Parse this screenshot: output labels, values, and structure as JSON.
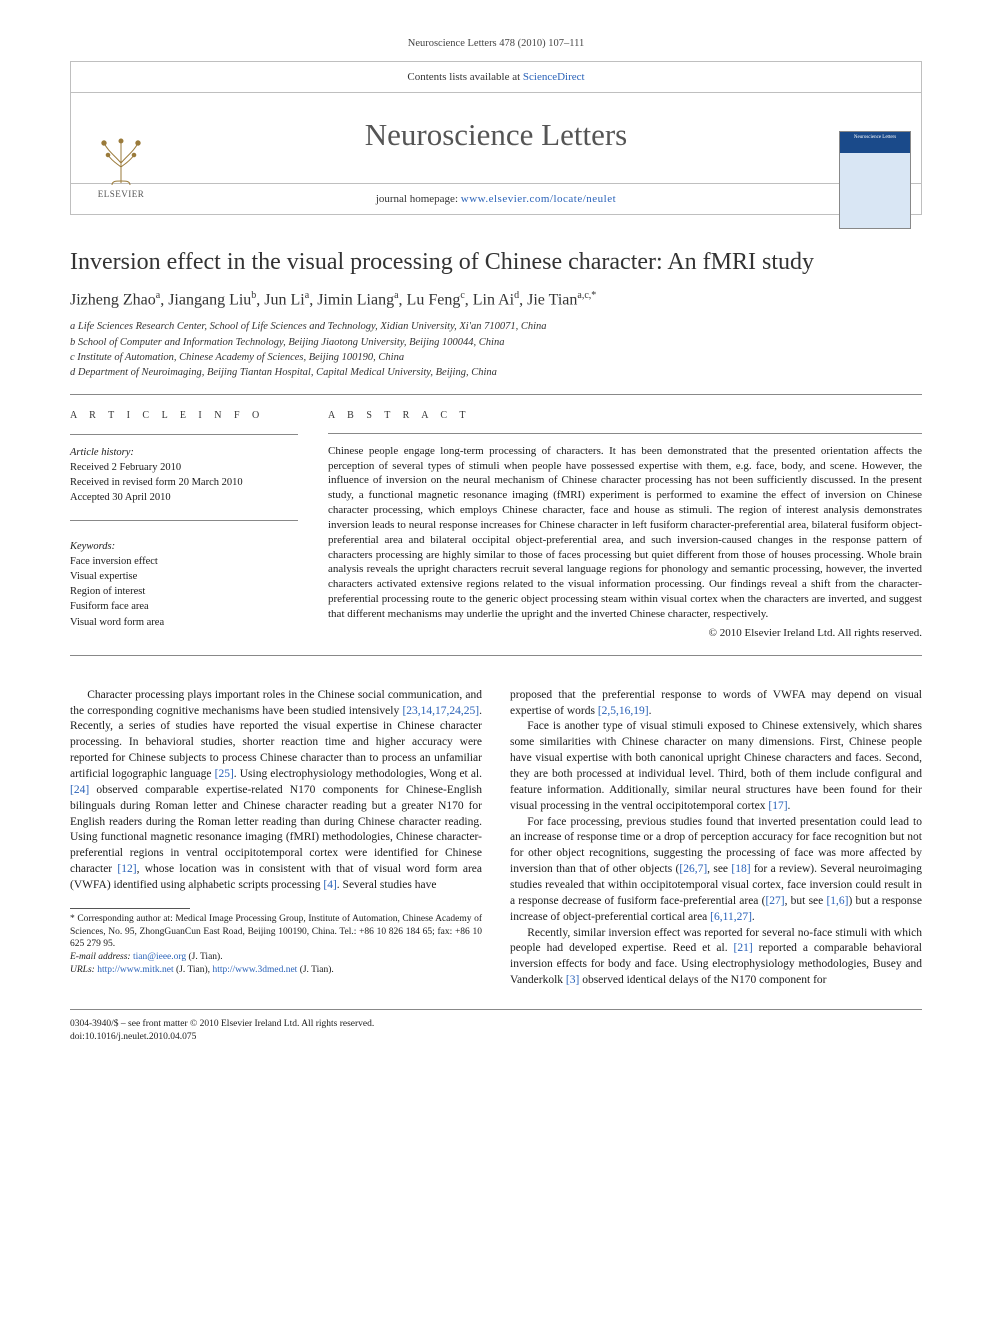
{
  "running_head": "Neuroscience Letters 478 (2010) 107–111",
  "header": {
    "contents_line_prefix": "Contents lists available at ",
    "contents_link": "ScienceDirect",
    "journal": "Neuroscience Letters",
    "homepage_prefix": "journal homepage: ",
    "homepage_url": "www.elsevier.com/locate/neulet",
    "publisher_wordmark": "ELSEVIER",
    "cover_title": "Neuroscience Letters"
  },
  "title": "Inversion effect in the visual processing of Chinese character: An fMRI study",
  "authors_html": "Jizheng Zhao<sup>a</sup>, Jiangang Liu<sup>b</sup>, Jun Li<sup>a</sup>, Jimin Liang<sup>a</sup>, Lu Feng<sup>c</sup>, Lin Ai<sup>d</sup>, Jie Tian<sup>a,c,*</sup>",
  "affiliations": [
    "a Life Sciences Research Center, School of Life Sciences and Technology, Xidian University, Xi'an 710071, China",
    "b School of Computer and Information Technology, Beijing Jiaotong University, Beijing 100044, China",
    "c Institute of Automation, Chinese Academy of Sciences, Beijing 100190, China",
    "d Department of Neuroimaging, Beijing Tiantan Hospital, Capital Medical University, Beijing, China"
  ],
  "article_info": {
    "heading": "A R T I C L E   I N F O",
    "history_head": "Article history:",
    "history": [
      "Received 2 February 2010",
      "Received in revised form 20 March 2010",
      "Accepted 30 April 2010"
    ],
    "keywords_head": "Keywords:",
    "keywords": [
      "Face inversion effect",
      "Visual expertise",
      "Region of interest",
      "Fusiform face area",
      "Visual word form area"
    ]
  },
  "abstract": {
    "heading": "A B S T R A C T",
    "text": "Chinese people engage long-term processing of characters. It has been demonstrated that the presented orientation affects the perception of several types of stimuli when people have possessed expertise with them, e.g. face, body, and scene. However, the influence of inversion on the neural mechanism of Chinese character processing has not been sufficiently discussed. In the present study, a functional magnetic resonance imaging (fMRI) experiment is performed to examine the effect of inversion on Chinese character processing, which employs Chinese character, face and house as stimuli. The region of interest analysis demonstrates inversion leads to neural response increases for Chinese character in left fusiform character-preferential area, bilateral fusiform object-preferential area and bilateral occipital object-preferential area, and such inversion-caused changes in the response pattern of characters processing are highly similar to those of faces processing but quiet different from those of houses processing. Whole brain analysis reveals the upright characters recruit several language regions for phonology and semantic processing, however, the inverted characters activated extensive regions related to the visual information processing. Our findings reveal a shift from the character-preferential processing route to the generic object processing steam within visual cortex when the characters are inverted, and suggest that different mechanisms may underlie the upright and the inverted Chinese character, respectively.",
    "copyright": "© 2010 Elsevier Ireland Ltd. All rights reserved."
  },
  "body": {
    "p1_a": "Character processing plays important roles in the Chinese social communication, and the corresponding cognitive mechanisms have been studied intensively ",
    "p1_ref1": "[23,14,17,24,25]",
    "p1_b": ". Recently, a series of studies have reported the visual expertise in Chinese character processing. In behavioral studies, shorter reaction time and higher accuracy were reported for Chinese subjects to process Chinese character than to process an unfamiliar artificial logographic language ",
    "p1_ref2": "[25]",
    "p1_c": ". Using electrophysiology methodologies, Wong et al. ",
    "p1_ref3": "[24]",
    "p1_d": " observed comparable expertise-related N170 components for Chinese-English bilinguals during Roman letter and Chinese character reading but a greater N170 for English readers during the Roman letter reading than during Chinese character reading. Using functional magnetic resonance imaging (fMRI) methodologies, Chinese character-preferential regions in ventral occipitotemporal cortex were identified for Chinese character ",
    "p1_ref4": "[12]",
    "p1_e": ", whose location was in consistent with that of visual word form area (VWFA) identified using alphabetic scripts processing ",
    "p1_ref5": "[4]",
    "p1_f": ". Several studies have",
    "p2_a": "proposed that the preferential response to words of VWFA may depend on visual expertise of words ",
    "p2_ref1": "[2,5,16,19]",
    "p2_b": ".",
    "p3_a": "Face is another type of visual stimuli exposed to Chinese extensively, which shares some similarities with Chinese character on many dimensions. First, Chinese people have visual expertise with both canonical upright Chinese characters and faces. Second, they are both processed at individual level. Third, both of them include configural and feature information. Additionally, similar neural structures have been found for their visual processing in the ventral occipitotemporal cortex ",
    "p3_ref1": "[17]",
    "p3_b": ".",
    "p4_a": "For face processing, previous studies found that inverted presentation could lead to an increase of response time or a drop of perception accuracy for face recognition but not for other object recognitions, suggesting the processing of face was more affected by inversion than that of other objects (",
    "p4_ref1": "[26,7]",
    "p4_b": ", see ",
    "p4_ref2": "[18]",
    "p4_c": " for a review). Several neuroimaging studies revealed that within occipitotemporal visual cortex, face inversion could result in a response decrease of fusiform face-preferential area (",
    "p4_ref3": "[27]",
    "p4_d": ", but see ",
    "p4_ref4": "[1,6]",
    "p4_e": ") but a response increase of object-preferential cortical area ",
    "p4_ref5": "[6,11,27]",
    "p4_f": ".",
    "p5_a": "Recently, similar inversion effect was reported for several no-face stimuli with which people had developed expertise. Reed et al. ",
    "p5_ref1": "[21]",
    "p5_b": " reported a comparable behavioral inversion effects for body and face. Using electrophysiology methodologies, Busey and Vanderkolk ",
    "p5_ref2": "[3]",
    "p5_c": " observed identical delays of the N170 component for"
  },
  "footnotes": {
    "corr": "* Corresponding author at: Medical Image Processing Group, Institute of Automation, Chinese Academy of Sciences, No. 95, ZhongGuanCun East Road, Beijing 100190, China. Tel.: +86 10 826 184 65; fax: +86 10 625 279 95.",
    "email_label": "E-mail address: ",
    "email": "tian@ieee.org",
    "email_who": " (J. Tian).",
    "urls_label": "URLs: ",
    "url1": "http://www.mitk.net",
    "url1_who": " (J. Tian), ",
    "url2": "http://www.3dmed.net",
    "url2_who": " (J. Tian)."
  },
  "imprint": {
    "line1": "0304-3940/$ – see front matter © 2010 Elsevier Ireland Ltd. All rights reserved.",
    "doi_label": "doi:",
    "doi": "10.1016/j.neulet.2010.04.075"
  },
  "colors": {
    "link": "#2a62b8",
    "rule": "#888888",
    "text": "#1a1a1a",
    "header_border": "#bfbfbf"
  }
}
